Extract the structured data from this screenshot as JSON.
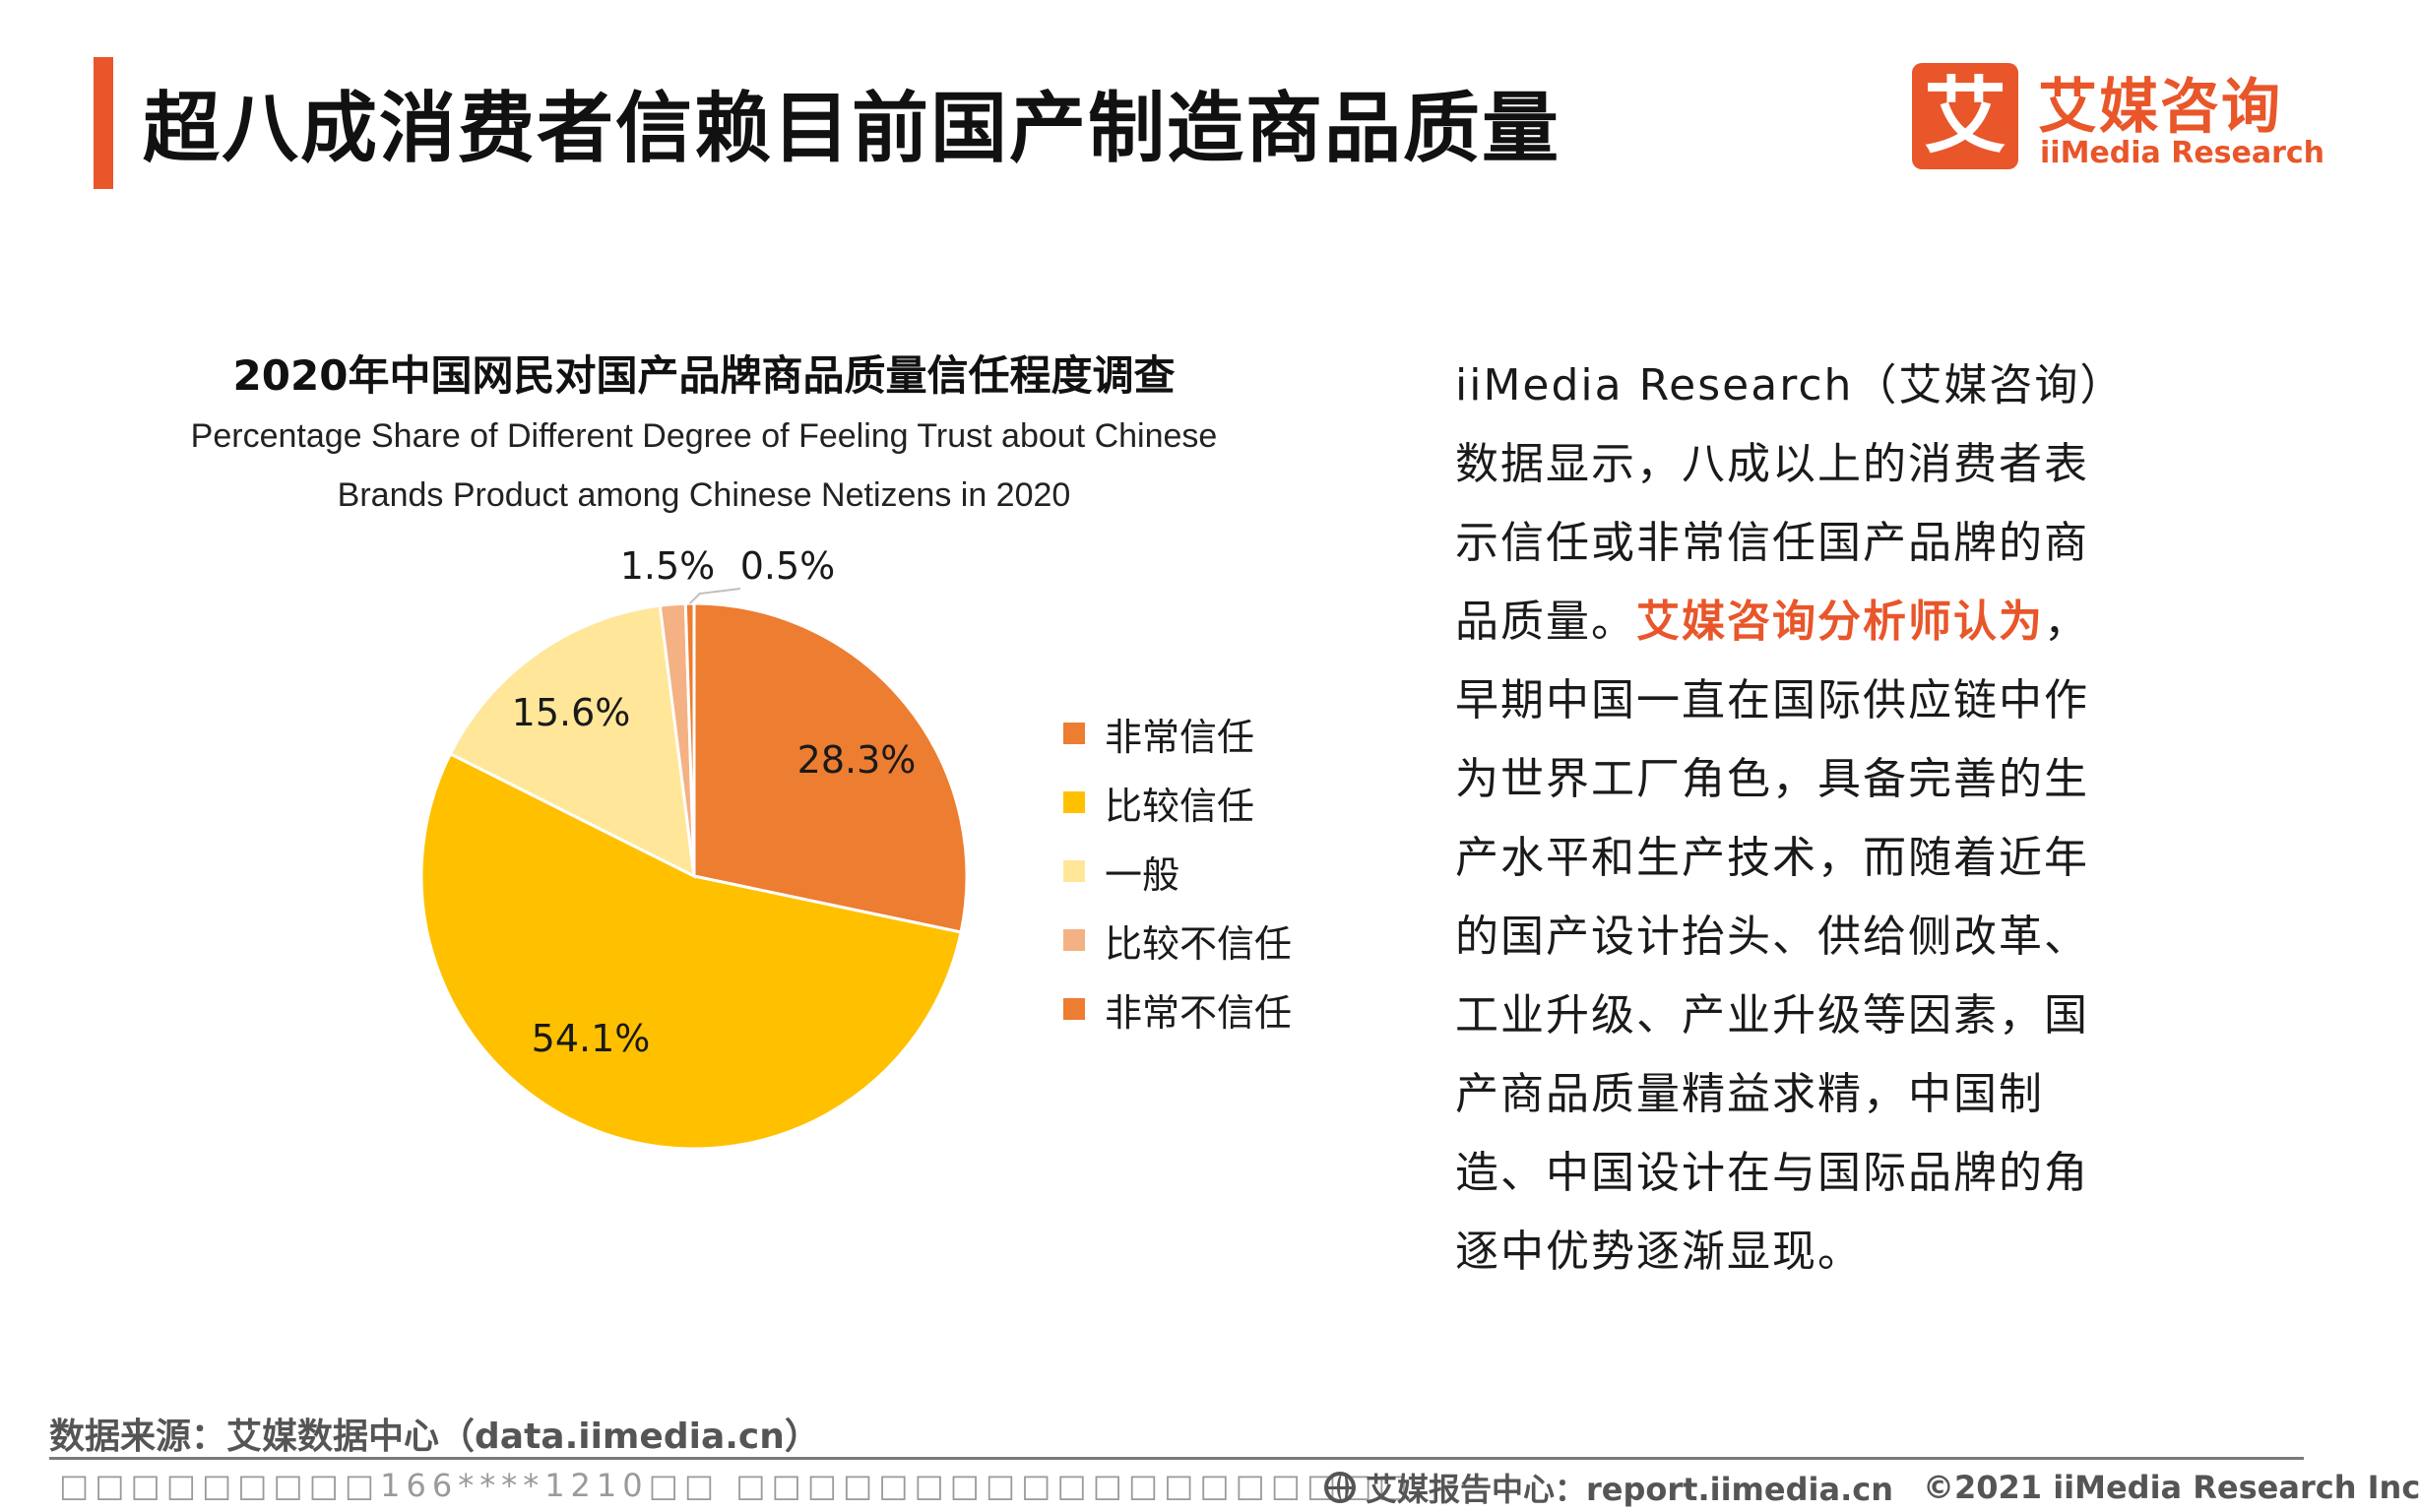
{
  "header": {
    "title": "超八成消费者信赖目前国产制造商品质量"
  },
  "logo": {
    "mark": "艾",
    "cn": "艾媒咨询",
    "en": "iiMedia Research"
  },
  "colors": {
    "accent": "#e8562a"
  },
  "chart_data": {
    "type": "pie",
    "title": "2020年中国网民对国产品牌商品质量信任程度调查",
    "subtitle_line1": "Percentage Share of Different Degree of Feeling Trust about Chinese",
    "subtitle_line2": "Brands Product among Chinese Netizens in 2020",
    "categories": [
      "非常信任",
      "比较信任",
      "一般",
      "比较不信任",
      "非常不信任"
    ],
    "values": [
      28.3,
      54.1,
      15.6,
      1.5,
      0.5
    ],
    "labels": [
      "28.3%",
      "54.1%",
      "15.6%",
      "1.5%",
      "0.5%"
    ],
    "colors": [
      "#ed7d31",
      "#ffc000",
      "#ffe699",
      "#f4b183",
      "#ed7d31"
    ],
    "legend_position": "right",
    "start_angle": "12 o'clock",
    "direction": "clockwise"
  },
  "body": {
    "p1": "iiMedia Research（艾媒咨询）数据显示，八成以上的消费者表示信任或非常信任国产品牌的商品质量。",
    "highlight": "艾媒咨询分析师认为",
    "p2": "，早期中国一直在国际供应链中作为世界工厂角色，具备完善的生产水平和生产技术，而随着近年的国产设计抬头、供给侧改革、工业升级、产业升级等因素，国产商品质量精益求精，中国制造、中国设计在与国际品牌的角逐中优势逐渐显现。"
  },
  "footer": {
    "source": "数据来源：艾媒数据中心（data.iimedia.cn）",
    "watermark": "□□□□□□□□□166****1210□□ □□□□□□□□□□□□□□□□□□□",
    "report_site": "艾媒报告中心：report.iimedia.cn",
    "copyright": "©2021  iiMedia Research  Inc"
  }
}
